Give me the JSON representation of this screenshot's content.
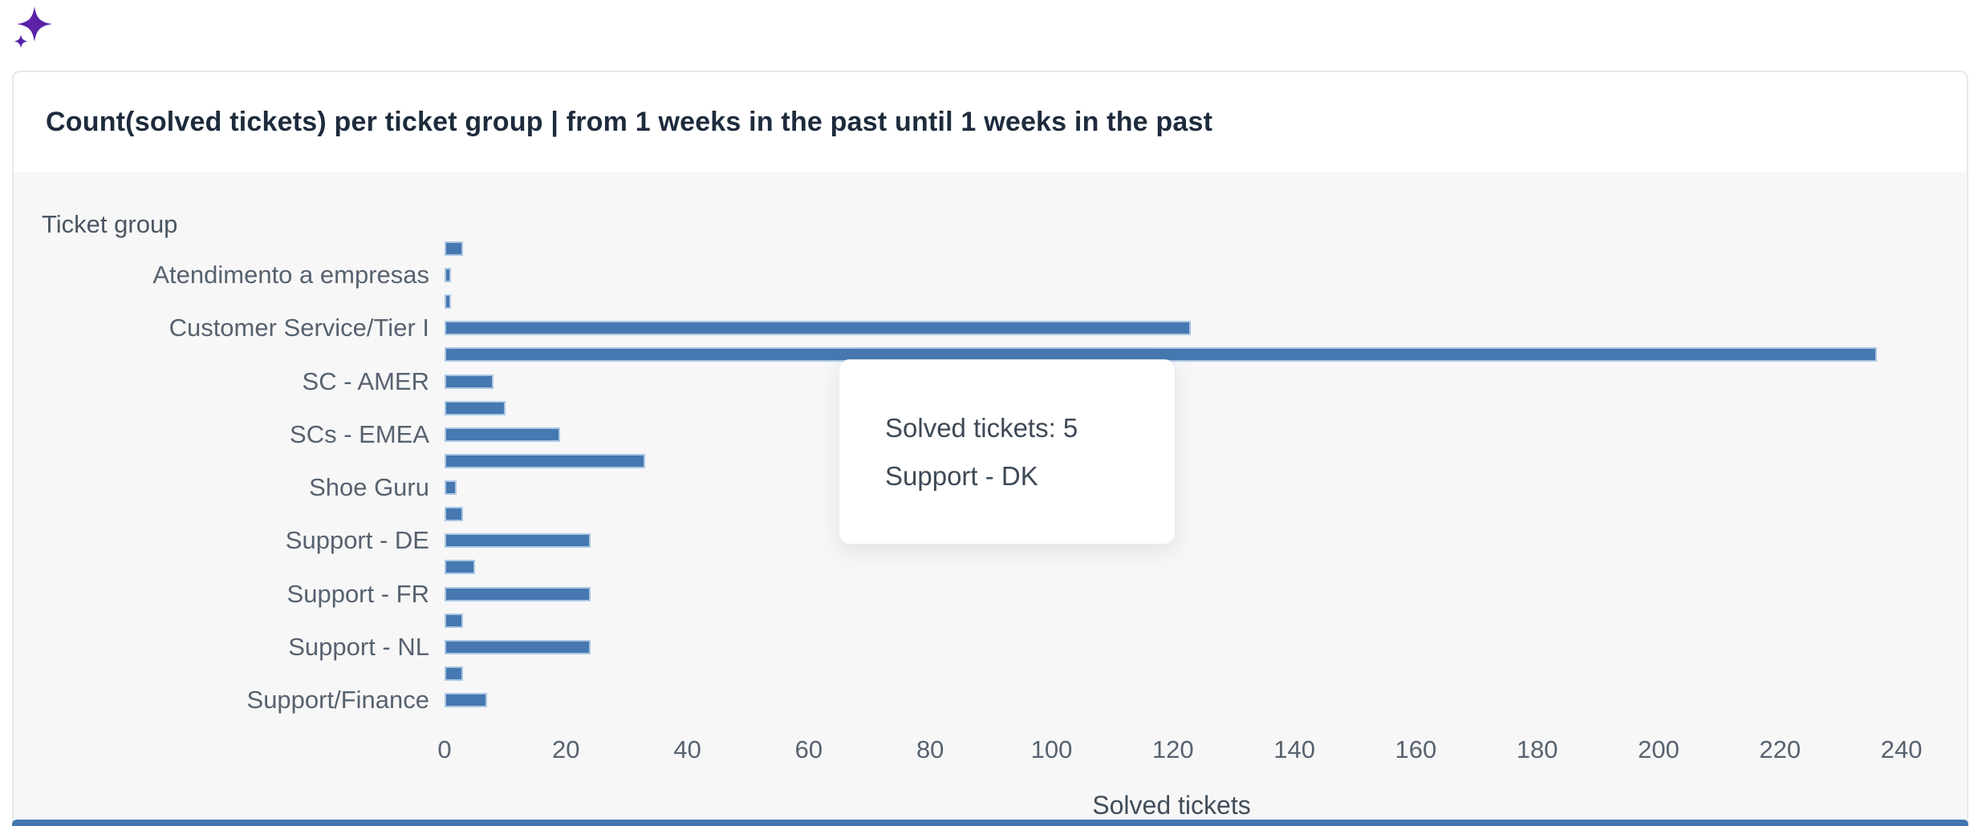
{
  "app": {
    "sparkle_icon_color": "#5a23a8"
  },
  "card": {
    "title": "Count(solved tickets) per ticket group | from 1 weeks in the past until 1 weeks in the past"
  },
  "chart_data": {
    "type": "bar",
    "orientation": "horizontal",
    "title": "Count(solved tickets) per ticket group | from 1 weeks in the past until 1 weeks in the past",
    "y_axis_title": "Ticket group",
    "x_axis_title": "Solved tickets",
    "x_ticks": [
      0,
      20,
      40,
      60,
      80,
      100,
      120,
      140,
      160,
      180,
      200,
      220,
      240
    ],
    "xlim": [
      0,
      248
    ],
    "grid": false,
    "bar_color": "#4678b1",
    "bars": [
      {
        "label": "",
        "value": 3
      },
      {
        "label": "Atendimento a empresas",
        "value": 1
      },
      {
        "label": "",
        "value": 1
      },
      {
        "label": "Customer Service/Tier I",
        "value": 123
      },
      {
        "label": "",
        "value": 236
      },
      {
        "label": "SC - AMER",
        "value": 8
      },
      {
        "label": "",
        "value": 10
      },
      {
        "label": "SCs - EMEA",
        "value": 19
      },
      {
        "label": "",
        "value": 33
      },
      {
        "label": "Shoe Guru",
        "value": 2
      },
      {
        "label": "",
        "value": 3
      },
      {
        "label": "Support - DE",
        "value": 24
      },
      {
        "label": "",
        "value": 5
      },
      {
        "label": "Support - FR",
        "value": 24
      },
      {
        "label": "",
        "value": 3
      },
      {
        "label": "Support - NL",
        "value": 24
      },
      {
        "label": "",
        "value": 3
      },
      {
        "label": "Support/Finance",
        "value": 7
      }
    ],
    "tooltip": {
      "line1": "Solved tickets: 5",
      "line2": "Support - DK"
    }
  }
}
